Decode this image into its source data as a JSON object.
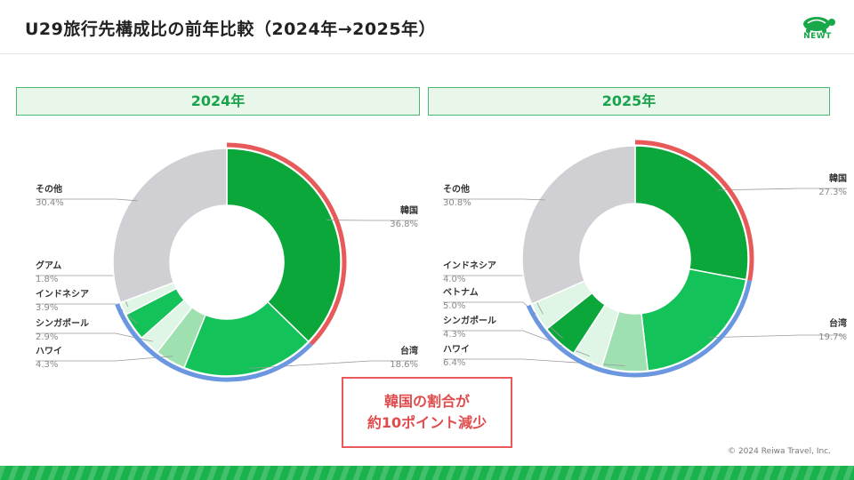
{
  "header": {
    "title": "U29旅行先構成比の前年比較（2024年→2025年）",
    "logo_text": "NEWT"
  },
  "panels": [
    {
      "year": "2024年"
    },
    {
      "year": "2025年"
    }
  ],
  "callout": {
    "line1": "韓国の割合が",
    "line2": "約10ポイント減少"
  },
  "footer": {
    "copyright": "© 2024 Reiwa Travel, Inc."
  },
  "colors": {
    "green_dark": "#0ba73a",
    "green_mid": "#14c25a",
    "green_light": "#9ee0b0",
    "green_pale": "#dff5e5",
    "gray": "#cfcfd4",
    "highlight_red": "#e85a5a",
    "highlight_blue": "#6b96e0"
  },
  "chart_data": [
    {
      "type": "pie",
      "title": "2024年",
      "slices": [
        {
          "label": "韓国",
          "value": 36.8,
          "value_label": "36.8%"
        },
        {
          "label": "台湾",
          "value": 18.6,
          "value_label": "18.6%"
        },
        {
          "label": "ハワイ",
          "value": 4.3,
          "value_label": "4.3%"
        },
        {
          "label": "シンガポール",
          "value": 2.9,
          "value_label": "2.9%"
        },
        {
          "label": "インドネシア",
          "value": 3.9,
          "value_label": "3.9%"
        },
        {
          "label": "グアム",
          "value": 1.8,
          "value_label": "1.8%"
        },
        {
          "label": "その他",
          "value": 30.4,
          "value_label": "30.4%"
        }
      ]
    },
    {
      "type": "pie",
      "title": "2025年",
      "slices": [
        {
          "label": "韓国",
          "value": 27.3,
          "value_label": "27.3%"
        },
        {
          "label": "台湾",
          "value": 19.7,
          "value_label": "19.7%"
        },
        {
          "label": "ハワイ",
          "value": 6.4,
          "value_label": "6.4%"
        },
        {
          "label": "シンガポール",
          "value": 4.3,
          "value_label": "4.3%"
        },
        {
          "label": "ベトナム",
          "value": 5.0,
          "value_label": "5.0%"
        },
        {
          "label": "インドネシア",
          "value": 4.0,
          "value_label": "4.0%"
        },
        {
          "label": "その他",
          "value": 30.8,
          "value_label": "30.8%"
        }
      ]
    }
  ]
}
